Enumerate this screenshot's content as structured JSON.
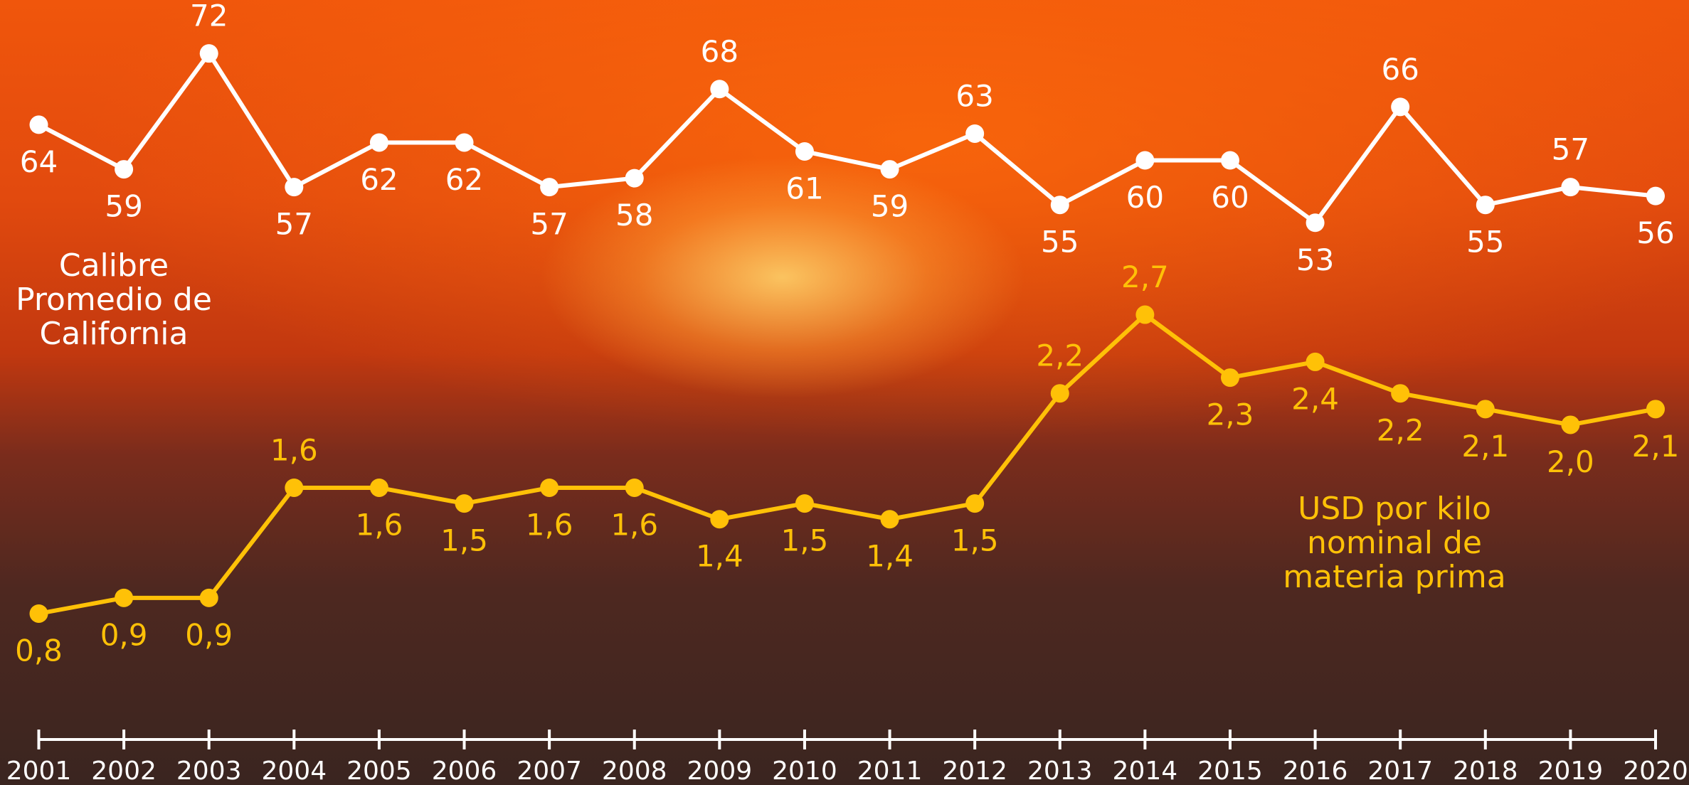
{
  "chart_data": {
    "type": "line",
    "categories": [
      "2001",
      "2002",
      "2003",
      "2004",
      "2005",
      "2006",
      "2007",
      "2008",
      "2009",
      "2010",
      "2011",
      "2012",
      "2013",
      "2014",
      "2015",
      "2016",
      "2017",
      "2018",
      "2019",
      "2020"
    ],
    "ylim": [
      -5,
      78
    ],
    "y2lim": [
      0,
      4.7
    ],
    "series": [
      {
        "name": "Calibre Promedio de California",
        "color": "#ffffff",
        "values": [
          64,
          59,
          72,
          57,
          62,
          62,
          57,
          58,
          68,
          61,
          59,
          63,
          55,
          60,
          60,
          53,
          66,
          55,
          57,
          56
        ]
      },
      {
        "name": "USD por kilo nominal de materia prima",
        "color": "#ffc107",
        "axis": "y2",
        "values": [
          0.8,
          0.9,
          0.9,
          1.6,
          1.6,
          1.5,
          1.6,
          1.6,
          1.4,
          1.5,
          1.4,
          1.5,
          2.2,
          2.7,
          2.3,
          2.4,
          2.2,
          2.1,
          2.0,
          2.1
        ],
        "value_labels": [
          "0,8",
          "0,9",
          "0,9",
          "1,6",
          "1,6",
          "1,5",
          "1,6",
          "1,6",
          "1,4",
          "1,5",
          "1,4",
          "1,5",
          "2,2",
          "2,7",
          "2,3",
          "2,4",
          "2,2",
          "2,1",
          "2,0",
          "2,1"
        ]
      }
    ]
  }
}
